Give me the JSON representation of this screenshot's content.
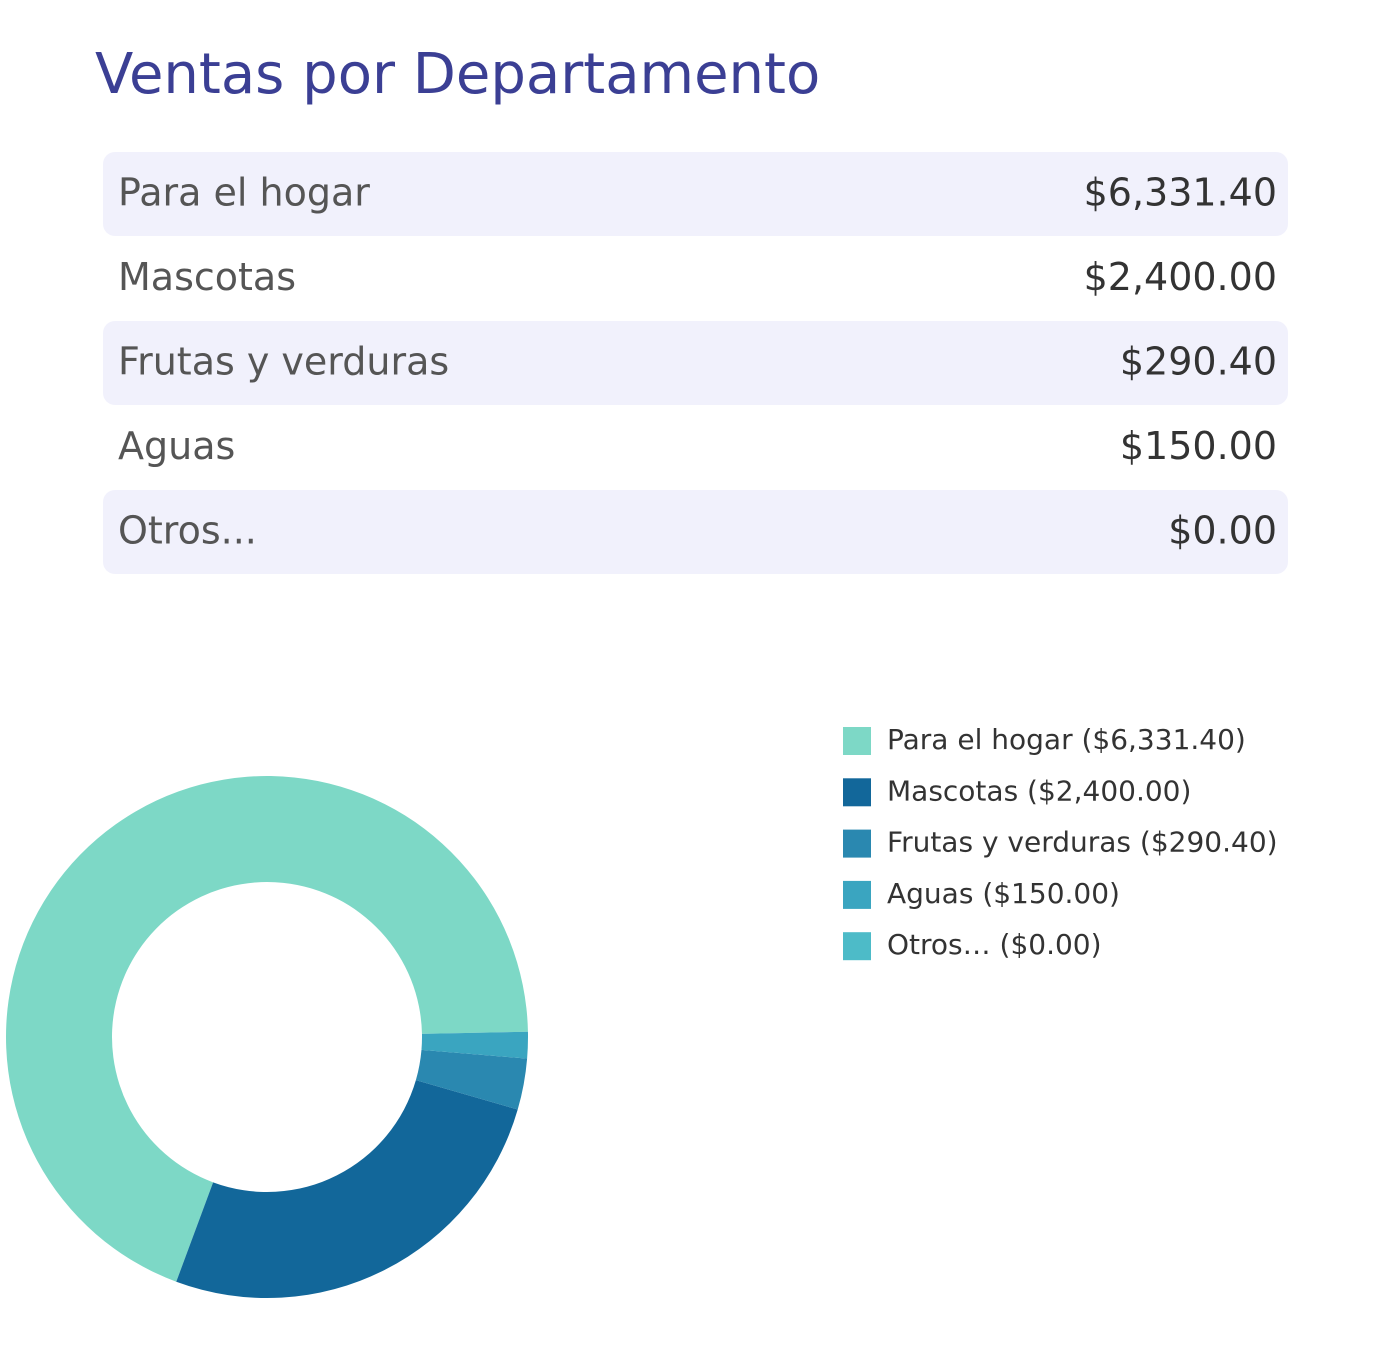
{
  "title": "Ventas por Departamento",
  "table": {
    "rows": [
      [
        "Para el hogar",
        "$6,331.40"
      ],
      [
        "Mascotas",
        "$2,400.00"
      ],
      [
        "Frutas y verduras",
        "$290.40"
      ],
      [
        "Aguas",
        "$150.00"
      ],
      [
        "Otros...",
        "$0.00"
      ]
    ]
  },
  "chart_data": {
    "type": "pie",
    "categories": [
      "Para el hogar ($6,331.40)",
      "Mascotas ($2,400.00)",
      "Frutas y verduras ($290.40)",
      "Aguas ($150.00)",
      "Otros… ($0.00)"
    ],
    "values": [
      6331.4,
      2400,
      290.4,
      150,
      0
    ],
    "colors": [
      "#7dd8c6",
      "#12679a",
      "#2a88b0",
      "#3aa5c0",
      "#4dbbc8"
    ]
  }
}
